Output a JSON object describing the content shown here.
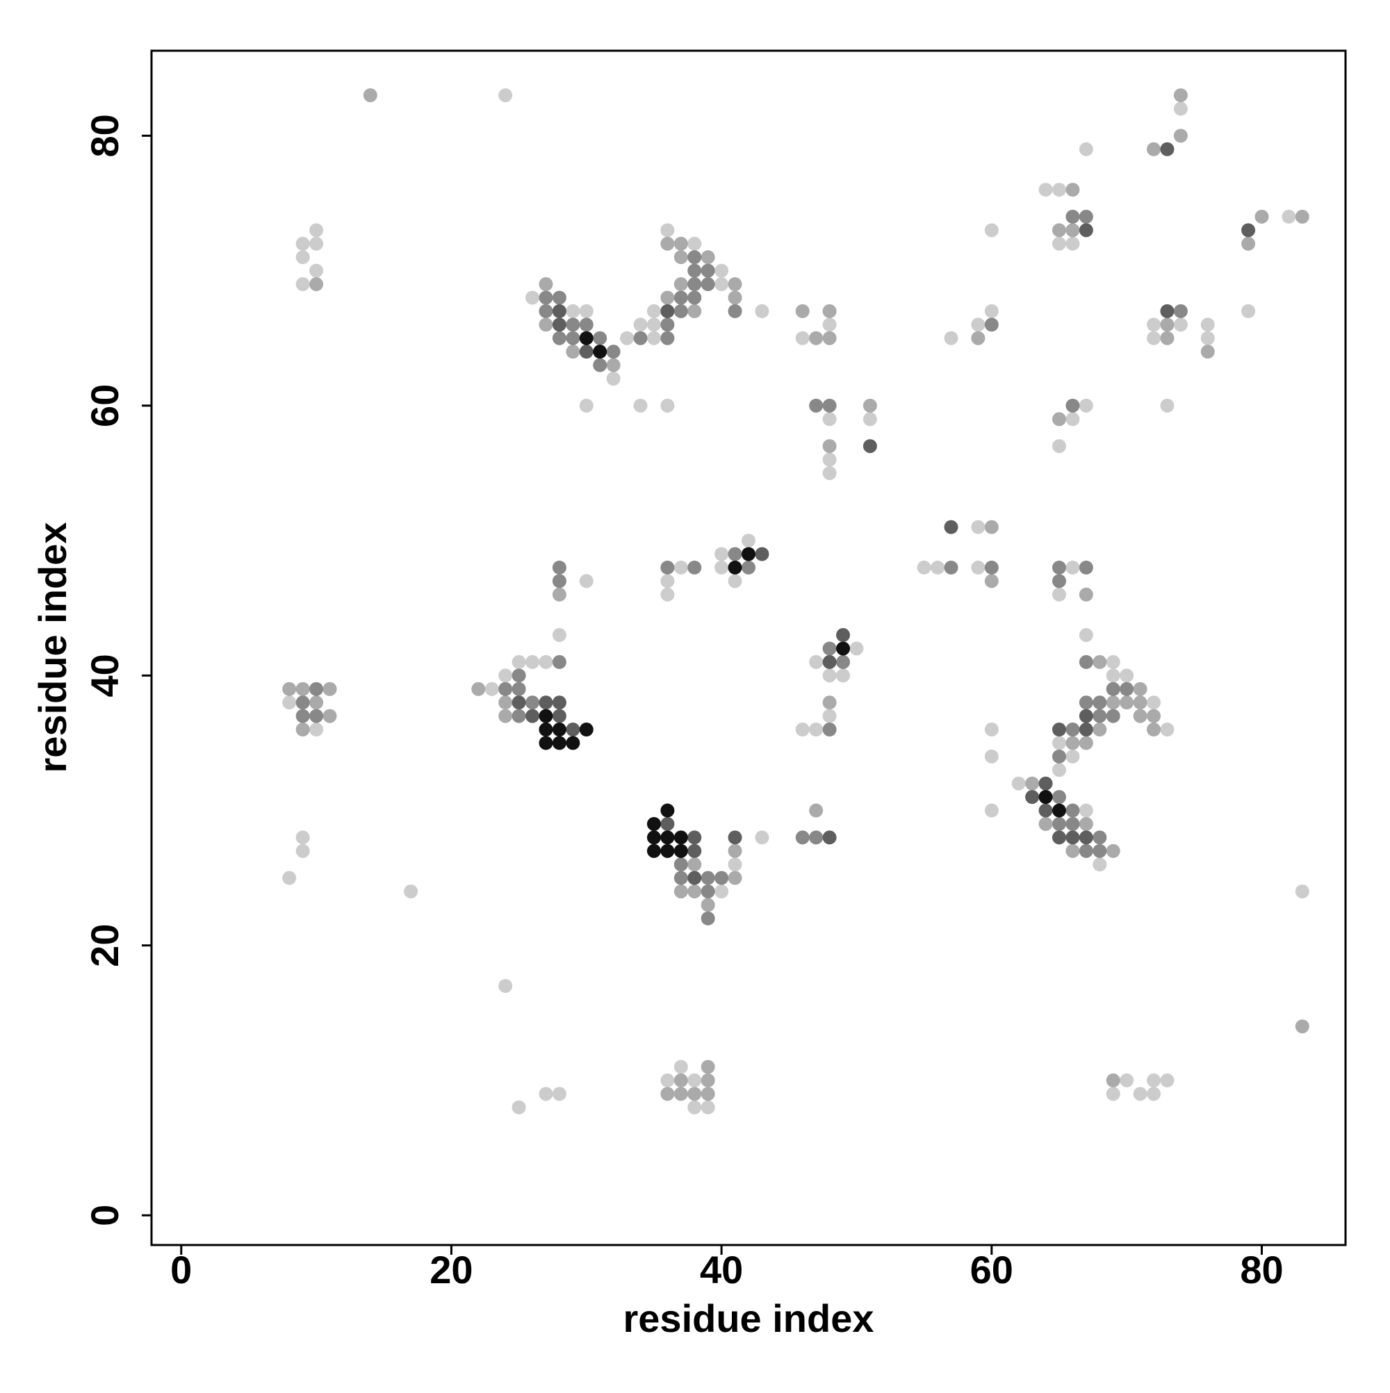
{
  "chart_data": {
    "type": "scatter",
    "xlabel": "residue index",
    "ylabel": "residue index",
    "xlim": [
      -2.2,
      86.2
    ],
    "ylim": [
      -2.2,
      86.3
    ],
    "xticks": [
      0,
      20,
      40,
      60,
      80
    ],
    "yticks": [
      0,
      20,
      40,
      60,
      80
    ],
    "grid": false,
    "series": [
      {
        "color": "#cccccc",
        "x": [
          24,
          74,
          67,
          64,
          65,
          65,
          66,
          82,
          60,
          10,
          9,
          10,
          9,
          10,
          9,
          36,
          38,
          40,
          40,
          35,
          43,
          34,
          35,
          33,
          35,
          26,
          29,
          30,
          32,
          30,
          34,
          36,
          46,
          48,
          48,
          51,
          48,
          48,
          57,
          59,
          60,
          72,
          74,
          72,
          76,
          76,
          79,
          73,
          66,
          67,
          65,
          59,
          55,
          56,
          59,
          66,
          65,
          67,
          42,
          40,
          40,
          41,
          37,
          36,
          36,
          30,
          28,
          50,
          47,
          48,
          49,
          48,
          46,
          47,
          25,
          26,
          27,
          24,
          23,
          8,
          10,
          69,
          69,
          70,
          72,
          73,
          65,
          66,
          65,
          60,
          60,
          60,
          62,
          67,
          68,
          40,
          41,
          43,
          9,
          9,
          8,
          17,
          83,
          24,
          37,
          36,
          38,
          38,
          39,
          25,
          27,
          28,
          70,
          69,
          71,
          72,
          72,
          73
        ],
        "y": [
          83,
          82,
          79,
          76,
          76,
          72,
          72,
          74,
          73,
          73,
          72,
          72,
          71,
          70,
          69,
          73,
          72,
          70,
          69,
          67,
          67,
          66,
          66,
          65,
          65,
          68,
          67,
          67,
          62,
          60,
          60,
          60,
          65,
          66,
          59,
          59,
          56,
          55,
          65,
          66,
          67,
          66,
          66,
          65,
          66,
          65,
          67,
          60,
          59,
          60,
          57,
          51,
          48,
          48,
          48,
          48,
          46,
          43,
          50,
          49,
          48,
          47,
          48,
          47,
          46,
          47,
          43,
          42,
          41,
          40,
          40,
          37,
          36,
          36,
          41,
          41,
          41,
          40,
          39,
          38,
          36,
          41,
          40,
          40,
          38,
          36,
          35,
          34,
          33,
          36,
          34,
          30,
          32,
          30,
          26,
          24,
          26,
          28,
          28,
          27,
          25,
          24,
          24,
          17,
          11,
          10,
          10,
          8,
          8,
          8,
          9,
          9,
          10,
          9,
          9,
          9,
          10,
          10
        ]
      },
      {
        "color": "#aaaaaa",
        "x": [
          14,
          74,
          74,
          72,
          66,
          65,
          66,
          80,
          83,
          79,
          10,
          36,
          37,
          37,
          39,
          37,
          41,
          36,
          41,
          38,
          27,
          27,
          29,
          32,
          46,
          48,
          47,
          48,
          51,
          48,
          59,
          73,
          73,
          76,
          65,
          60,
          60,
          67,
          28,
          48,
          22,
          24,
          24,
          8,
          9,
          11,
          10,
          11,
          9,
          68,
          71,
          69,
          70,
          71,
          71,
          72,
          68,
          72,
          66,
          67,
          63,
          64,
          67,
          66,
          69,
          38,
          37,
          38,
          39,
          41,
          41,
          47,
          83,
          39,
          37,
          39,
          36,
          37,
          38,
          39,
          69
        ],
        "y": [
          83,
          83,
          80,
          79,
          76,
          73,
          73,
          74,
          74,
          72,
          69,
          72,
          72,
          71,
          71,
          69,
          69,
          68,
          68,
          67,
          69,
          66,
          64,
          63,
          67,
          67,
          65,
          65,
          60,
          57,
          65,
          66,
          65,
          64,
          59,
          51,
          47,
          46,
          46,
          38,
          39,
          38,
          37,
          39,
          39,
          39,
          38,
          37,
          36,
          41,
          39,
          38,
          38,
          38,
          37,
          37,
          36,
          36,
          35,
          35,
          32,
          29,
          29,
          27,
          27,
          26,
          24,
          24,
          23,
          27,
          25,
          30,
          14,
          11,
          10,
          10,
          9,
          9,
          9,
          9,
          10
        ]
      },
      {
        "color": "#888888",
        "x": [
          66,
          67,
          38,
          38,
          39,
          38,
          39,
          37,
          38,
          37,
          41,
          36,
          34,
          36,
          27,
          28,
          27,
          29,
          30,
          28,
          29,
          31,
          32,
          31,
          47,
          48,
          60,
          74,
          66,
          57,
          60,
          65,
          67,
          65,
          41,
          42,
          36,
          38,
          28,
          28,
          48,
          49,
          48,
          28,
          25,
          24,
          25,
          26,
          25,
          10,
          9,
          9,
          10,
          67,
          69,
          70,
          67,
          68,
          68,
          69,
          66,
          65,
          65,
          66,
          65,
          66,
          68,
          67,
          68,
          37,
          37,
          39,
          40,
          39,
          39,
          46,
          47
        ],
        "y": [
          74,
          74,
          71,
          70,
          70,
          69,
          69,
          68,
          68,
          67,
          67,
          66,
          65,
          65,
          68,
          68,
          67,
          66,
          66,
          65,
          65,
          65,
          64,
          63,
          60,
          60,
          66,
          67,
          60,
          48,
          48,
          48,
          48,
          47,
          49,
          48,
          48,
          48,
          48,
          47,
          42,
          41,
          36,
          41,
          40,
          39,
          39,
          38,
          37,
          39,
          38,
          37,
          37,
          41,
          39,
          39,
          38,
          38,
          37,
          37,
          36,
          34,
          31,
          30,
          29,
          29,
          28,
          27,
          27,
          26,
          25,
          25,
          25,
          24,
          22,
          28,
          28
        ]
      },
      {
        "color": "#5e5e5e",
        "x": [
          73,
          67,
          79,
          36,
          28,
          28,
          30,
          51,
          73,
          57,
          43,
          49,
          48,
          25,
          27,
          28,
          26,
          28,
          29,
          67,
          65,
          67,
          64,
          63,
          64,
          65,
          66,
          67,
          36,
          38,
          38,
          38,
          41,
          48
        ],
        "y": [
          79,
          73,
          73,
          67,
          67,
          66,
          64,
          57,
          67,
          51,
          49,
          43,
          41,
          38,
          38,
          38,
          37,
          37,
          36,
          37,
          36,
          36,
          32,
          31,
          30,
          28,
          28,
          28,
          29,
          28,
          27,
          25,
          28,
          28
        ]
      },
      {
        "color": "#111111",
        "x": [
          30,
          31,
          42,
          41,
          49,
          27,
          27,
          28,
          30,
          27,
          28,
          29,
          64,
          65,
          36,
          35,
          35,
          36,
          37,
          35,
          36,
          37
        ],
        "y": [
          65,
          64,
          49,
          48,
          42,
          37,
          36,
          36,
          36,
          35,
          35,
          35,
          31,
          30,
          30,
          29,
          28,
          28,
          28,
          27,
          27,
          27
        ]
      }
    ]
  }
}
